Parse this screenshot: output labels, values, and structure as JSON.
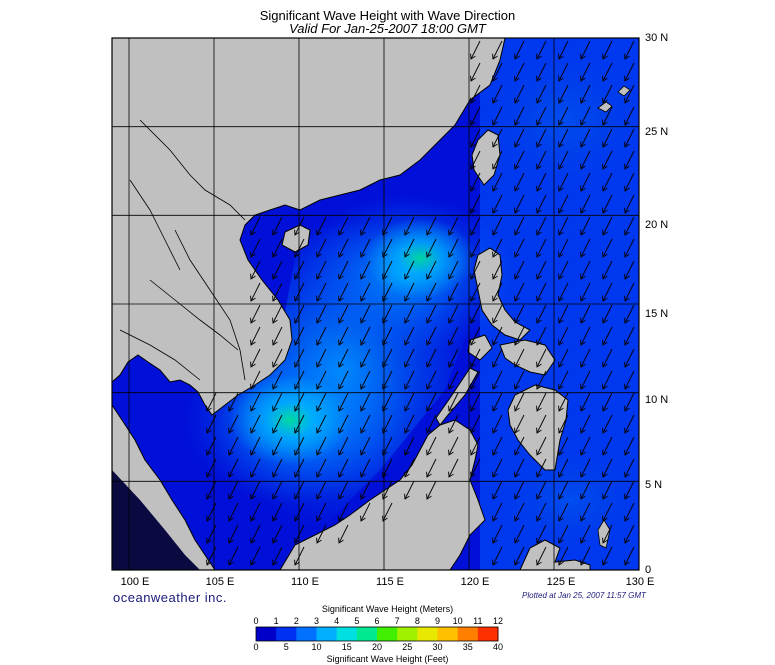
{
  "header": {
    "title": "Significant Wave Height with Wave Direction",
    "subtitle": "Valid For Jan-25-2007 18:00 GMT"
  },
  "map": {
    "lon_range": [
      99,
      130
    ],
    "lat_range": [
      0,
      30
    ],
    "lat_labels": [
      "30 N",
      "25 N",
      "20 N",
      "15 N",
      "10 N",
      "5 N",
      "0"
    ],
    "lon_labels": [
      "100 E",
      "105 E",
      "110 E",
      "115 E",
      "120 E",
      "125 E",
      "130 E"
    ],
    "land_color": "#c0c0c0",
    "deep_water_color": "#0000cc",
    "wave_direction": "from northeast toward southwest",
    "grid": true
  },
  "footer": {
    "brand": "oceanweather inc.",
    "plotted": "Plotted at Jan 25, 2007 11:57 GMT"
  },
  "colorbar": {
    "meters_title": "Significant Wave Height (Meters)",
    "feet_title": "Significant Wave Height (Feet)",
    "meter_ticks": [
      "0",
      "1",
      "2",
      "3",
      "4",
      "5",
      "6",
      "7",
      "8",
      "9",
      "10",
      "11",
      "12"
    ],
    "feet_ticks": [
      "0",
      "5",
      "10",
      "15",
      "20",
      "25",
      "30",
      "35",
      "40"
    ],
    "colors": [
      "#0000c8",
      "#0030f0",
      "#0070ff",
      "#00b0ff",
      "#00e0e0",
      "#00e890",
      "#40f000",
      "#a0f000",
      "#e8e800",
      "#ffc000",
      "#ff8000",
      "#ff3000"
    ]
  }
}
